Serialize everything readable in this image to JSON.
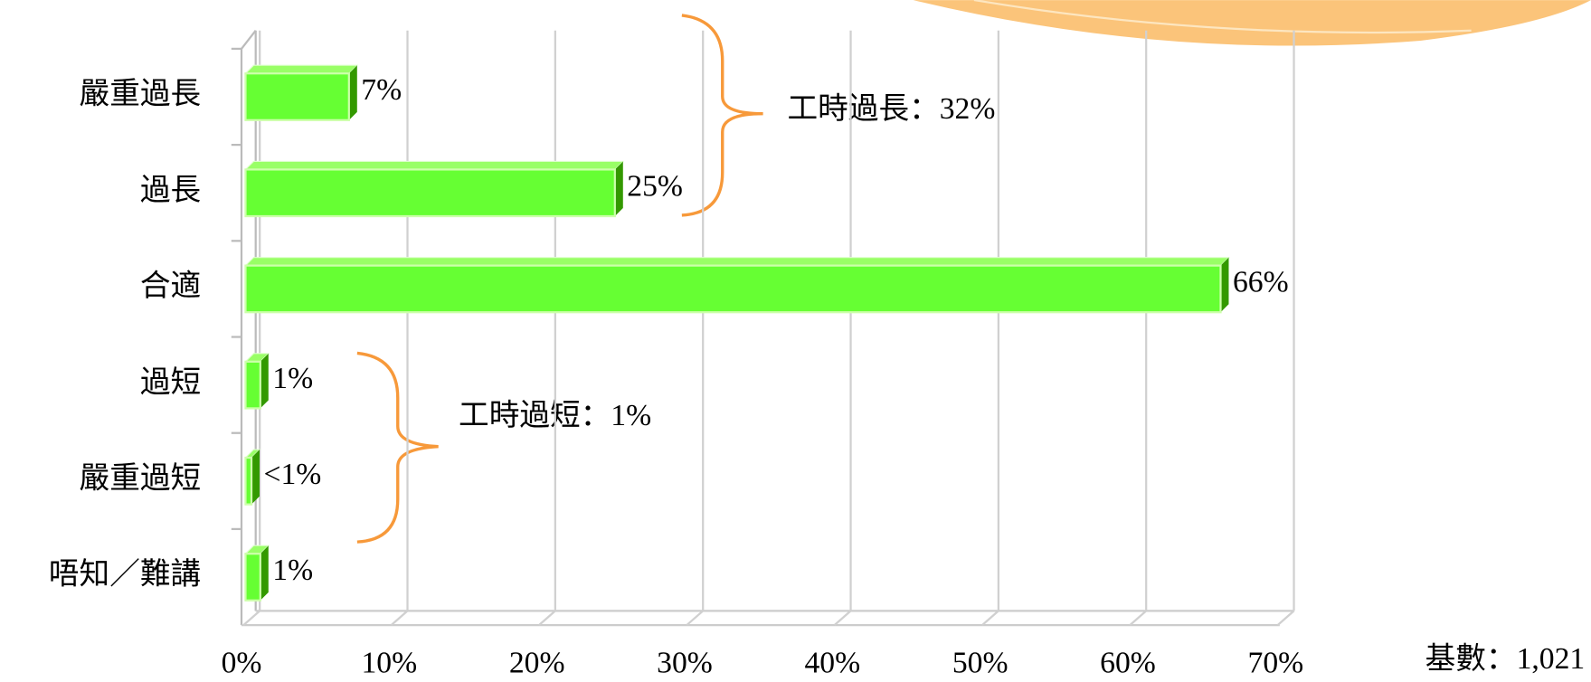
{
  "chart_data": {
    "type": "bar3d_horizontal",
    "categories": [
      "嚴重過長",
      "過長",
      "合適",
      "過短",
      "嚴重過短",
      "唔知／難講"
    ],
    "values": [
      7,
      25,
      66,
      1,
      0.4,
      1
    ],
    "value_labels": [
      "7%",
      "25%",
      "66%",
      "1%",
      "<1%",
      "1%"
    ],
    "color": "#66ff33",
    "xlim": [
      0,
      70
    ],
    "xticks": [
      {
        "value": 0,
        "label": "0%"
      },
      {
        "value": 10,
        "label": "10%"
      },
      {
        "value": 20,
        "label": "20%"
      },
      {
        "value": 30,
        "label": "30%"
      },
      {
        "value": 40,
        "label": "40%"
      },
      {
        "value": 50,
        "label": "50%"
      },
      {
        "value": 60,
        "label": "60%"
      },
      {
        "value": 70,
        "label": "70%"
      }
    ],
    "grid": true,
    "annotations": [
      "工時過長：32%",
      "工時過短：1%"
    ],
    "note": "基數：1,021"
  }
}
